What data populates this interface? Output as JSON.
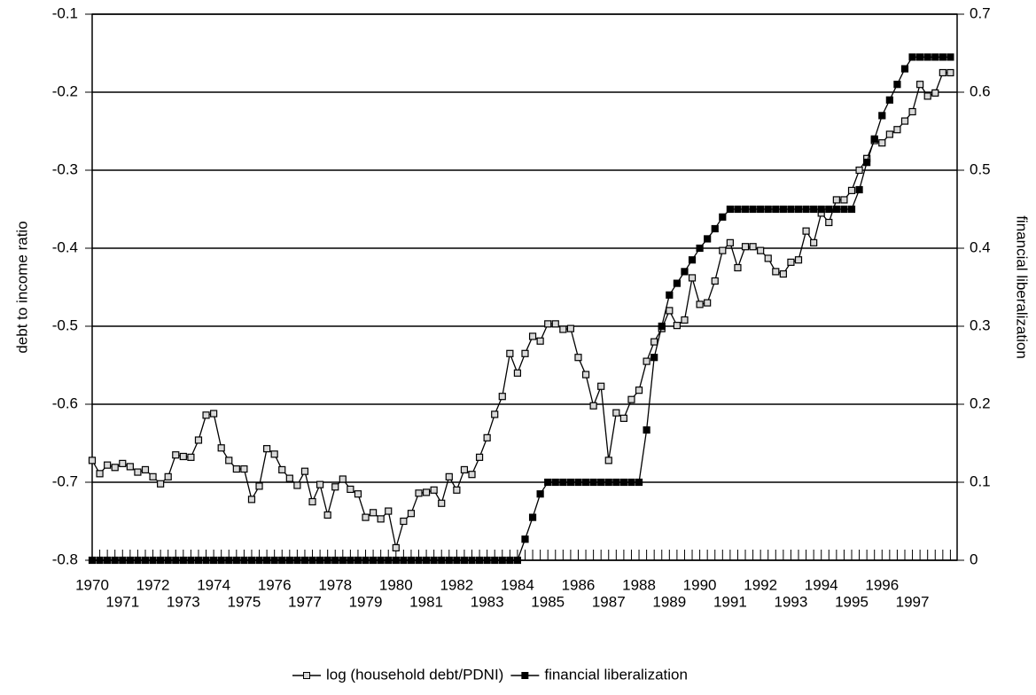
{
  "chart_data": {
    "type": "line",
    "y_label": "debt to income ratio",
    "y2_label": "financial liberalization",
    "categories": [
      "1970",
      null,
      null,
      null,
      "1971",
      null,
      null,
      null,
      "1972",
      null,
      null,
      null,
      "1973",
      null,
      null,
      null,
      "1974",
      null,
      null,
      null,
      "1975",
      null,
      null,
      null,
      "1976",
      null,
      null,
      null,
      "1977",
      null,
      null,
      null,
      "1978",
      null,
      null,
      null,
      "1979",
      null,
      null,
      null,
      "1980",
      null,
      null,
      null,
      "1981",
      null,
      null,
      null,
      "1982",
      null,
      null,
      null,
      "1983",
      null,
      null,
      null,
      "1984",
      null,
      null,
      null,
      "1985",
      null,
      null,
      null,
      "1986",
      null,
      null,
      null,
      "1987",
      null,
      null,
      null,
      "1988",
      null,
      null,
      null,
      "1989",
      null,
      null,
      null,
      "1990",
      null,
      null,
      null,
      "1991",
      null,
      null,
      null,
      "1992",
      null,
      null,
      null,
      "1993",
      null,
      null,
      null,
      "1994",
      null,
      null,
      null,
      "1995",
      null,
      null,
      null,
      "1996",
      null,
      null,
      null,
      "1997",
      null,
      null,
      null,
      null,
      null
    ],
    "series": [
      {
        "name": "log (household debt/PDNI)",
        "color": "#000000",
        "marker_fill": "#d9d9d9",
        "axis": "y",
        "values": [
          -0.672,
          -0.689,
          -0.678,
          -0.681,
          -0.676,
          -0.68,
          -0.687,
          -0.684,
          -0.693,
          -0.702,
          -0.693,
          -0.665,
          -0.667,
          -0.668,
          -0.646,
          -0.614,
          -0.612,
          -0.656,
          -0.672,
          -0.683,
          -0.683,
          -0.722,
          -0.705,
          -0.657,
          -0.664,
          -0.684,
          -0.695,
          -0.704,
          -0.686,
          -0.725,
          -0.703,
          -0.742,
          -0.706,
          -0.696,
          -0.709,
          -0.715,
          -0.745,
          -0.739,
          -0.747,
          -0.737,
          -0.784,
          -0.75,
          -0.74,
          -0.714,
          -0.713,
          -0.71,
          -0.727,
          -0.693,
          -0.71,
          -0.684,
          -0.69,
          -0.668,
          -0.643,
          -0.613,
          -0.59,
          -0.535,
          -0.56,
          -0.535,
          -0.513,
          -0.519,
          -0.497,
          -0.497,
          -0.504,
          -0.503,
          -0.54,
          -0.562,
          -0.602,
          -0.577,
          -0.672,
          -0.611,
          -0.618,
          -0.594,
          -0.582,
          -0.545,
          -0.52,
          -0.503,
          -0.48,
          -0.499,
          -0.492,
          -0.438,
          -0.472,
          -0.47,
          -0.442,
          -0.403,
          -0.393,
          -0.425,
          -0.398,
          -0.398,
          -0.403,
          -0.413,
          -0.43,
          -0.433,
          -0.418,
          -0.415,
          -0.378,
          -0.393,
          -0.355,
          -0.367,
          -0.338,
          -0.338,
          -0.326,
          -0.3,
          -0.285,
          -0.262,
          -0.265,
          -0.254,
          -0.248,
          -0.237,
          -0.225,
          -0.19,
          -0.205,
          -0.201,
          -0.175,
          -0.175
        ]
      },
      {
        "name": "financial liberalization",
        "color": "#000000",
        "marker_fill": "#000000",
        "axis": "y2",
        "values": [
          0,
          0,
          0,
          0,
          0,
          0,
          0,
          0,
          0,
          0,
          0,
          0,
          0,
          0,
          0,
          0,
          0,
          0,
          0,
          0,
          0,
          0,
          0,
          0,
          0,
          0,
          0,
          0,
          0,
          0,
          0,
          0,
          0,
          0,
          0,
          0,
          0,
          0,
          0,
          0,
          0,
          0,
          0,
          0,
          0,
          0,
          0,
          0,
          0,
          0,
          0,
          0,
          0,
          0,
          0,
          0,
          0,
          0.027,
          0.055,
          0.085,
          0.1,
          0.1,
          0.1,
          0.1,
          0.1,
          0.1,
          0.1,
          0.1,
          0.1,
          0.1,
          0.1,
          0.1,
          0.1,
          0.167,
          0.26,
          0.3,
          0.34,
          0.355,
          0.37,
          0.385,
          0.4,
          0.412,
          0.425,
          0.44,
          0.45,
          0.45,
          0.45,
          0.45,
          0.45,
          0.45,
          0.45,
          0.45,
          0.45,
          0.45,
          0.45,
          0.45,
          0.45,
          0.45,
          0.45,
          0.45,
          0.45,
          0.475,
          0.51,
          0.54,
          0.57,
          0.59,
          0.61,
          0.63,
          0.645,
          0.645,
          0.645,
          0.645,
          0.645,
          0.645
        ]
      }
    ],
    "ylim": [
      -0.8,
      -0.1
    ],
    "yticks": [
      -0.8,
      -0.7,
      -0.6,
      -0.5,
      -0.4,
      -0.3,
      -0.2,
      -0.1
    ],
    "y2lim": [
      0,
      0.7
    ],
    "y2ticks": [
      0,
      0.1,
      0.2,
      0.3,
      0.4,
      0.5,
      0.6,
      0.7
    ],
    "grid": true,
    "legend": "bottom"
  }
}
